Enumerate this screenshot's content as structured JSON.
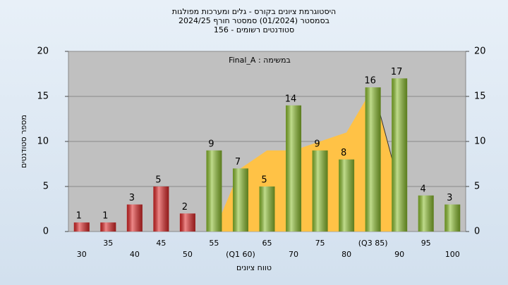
{
  "chart_data": {
    "type": "bar",
    "title": [
      "היסטוגרמת ציונים בקורס - גלים ומערכות מפולגות",
      "בסמסטר  (01/2024)  סמסטר חורף 2024/25",
      "סטודנטים רשומים - 156"
    ],
    "annotation": "Final_A : במשימה",
    "x_label": "טווח ציונים",
    "y_label": "מספר סטודנטים",
    "categories": [
      "30",
      "35",
      "40",
      "45",
      "50",
      "55",
      "(Q1 60)",
      "65",
      "70",
      "75",
      "80",
      "(Q3 85)",
      "90",
      "95",
      "100"
    ],
    "values": [
      1,
      1,
      3,
      5,
      2,
      9,
      7,
      5,
      14,
      9,
      8,
      16,
      17,
      4,
      3
    ],
    "colors": [
      "#e02828",
      "#e02828",
      "#e02828",
      "#e02828",
      "#e02828",
      "#8cbf2e",
      "#8cbf2e",
      "#8cbf2e",
      "#8cbf2e",
      "#8cbf2e",
      "#8cbf2e",
      "#8cbf2e",
      "#8cbf2e",
      "#8cbf2e",
      "#8cbf2e"
    ],
    "area": {
      "color": "#ffc246",
      "values": [
        null,
        null,
        null,
        null,
        null,
        0,
        7,
        9,
        9,
        10,
        11,
        16,
        5,
        null,
        null
      ]
    },
    "ylim": [
      0,
      20
    ],
    "yticks": [
      0,
      5,
      10,
      15,
      20
    ],
    "grid": true
  }
}
